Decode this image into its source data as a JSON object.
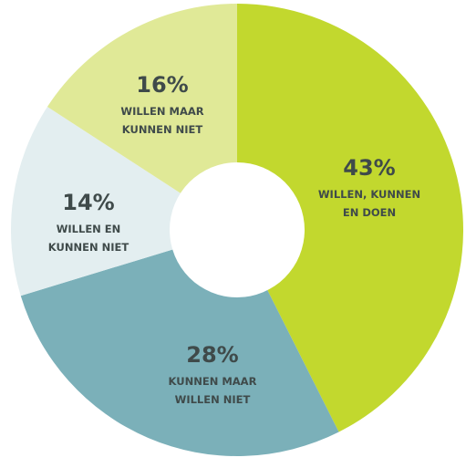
{
  "chart_data": {
    "type": "pie",
    "donut": true,
    "slices": [
      {
        "value": 43,
        "percent_label": "43%",
        "label_lines": [
          "WILLEN, KUNNEN",
          "EN DOEN"
        ],
        "color": "#c2d82e"
      },
      {
        "value": 28,
        "percent_label": "28%",
        "label_lines": [
          "KUNNEN MAAR",
          "WILLEN NIET"
        ],
        "color": "#7bb0b9"
      },
      {
        "value": 14,
        "percent_label": "14%",
        "label_lines": [
          "WILLEN EN",
          "KUNNEN NIET"
        ],
        "color": "#e3eef0"
      },
      {
        "value": 16,
        "percent_label": "16%",
        "label_lines": [
          "WILLEN MAAR",
          "KUNNEN NIET"
        ],
        "color": "#e0e997"
      }
    ],
    "start": "top",
    "direction": "clockwise",
    "center_color": "#ffffff"
  }
}
